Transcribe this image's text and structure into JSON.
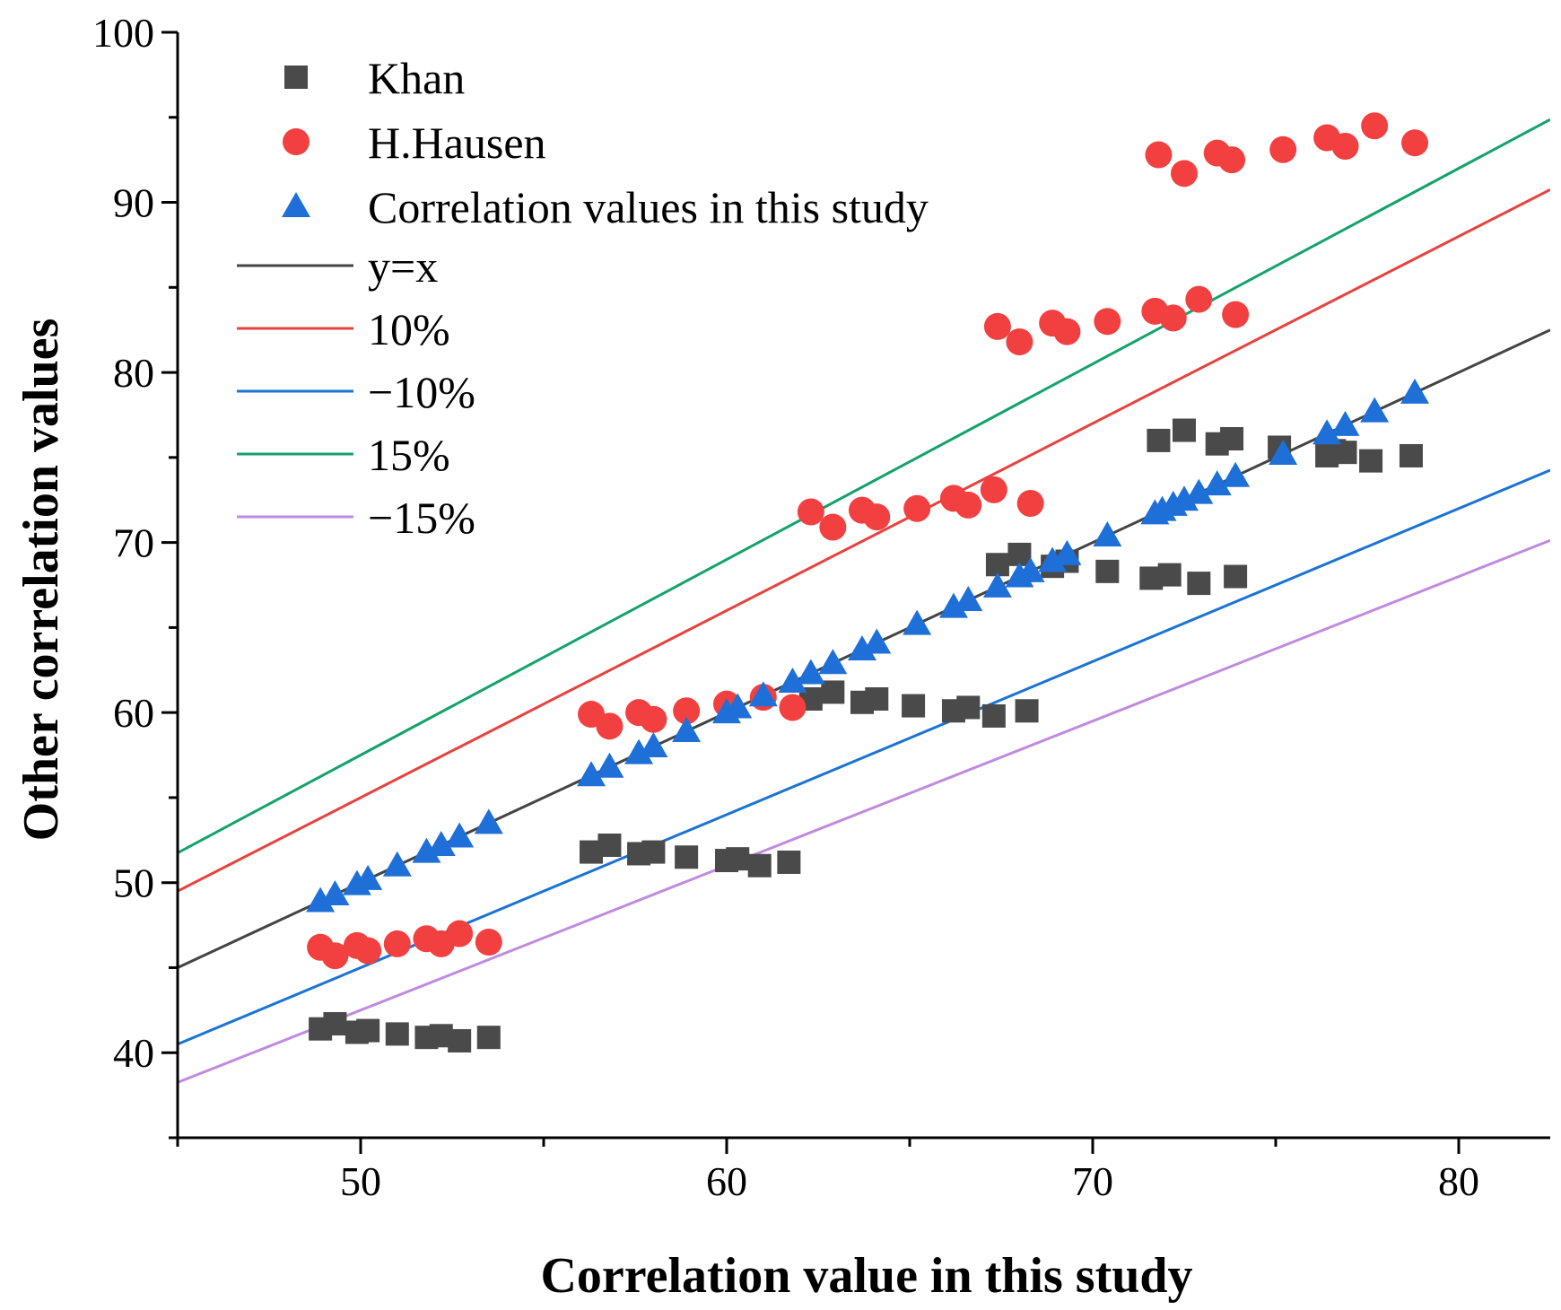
{
  "chart_data": {
    "type": "scatter",
    "title": "",
    "xlabel": "Correlation value in this study",
    "ylabel": "Other correlation values",
    "xlim": [
      45,
      82.5
    ],
    "ylim": [
      35,
      100
    ],
    "xticks": [
      50,
      60,
      70,
      80
    ],
    "yticks": [
      40,
      50,
      60,
      70,
      80,
      90,
      100
    ],
    "x_minor_step": 5,
    "y_minor_step": 5,
    "grid": false,
    "legend_position": "top-left",
    "series": [
      {
        "name": "Khan",
        "marker": "square",
        "color": "#4a4a4a",
        "x": [
          48.9,
          49.3,
          49.9,
          50.2,
          51.0,
          51.8,
          52.2,
          52.7,
          53.5,
          56.3,
          56.8,
          57.6,
          58.0,
          58.9,
          60.0,
          60.3,
          60.9,
          61.7,
          62.3,
          62.9,
          63.7,
          64.1,
          65.1,
          66.2,
          66.6,
          67.3,
          67.4,
          68.0,
          68.2,
          68.9,
          69.3,
          70.4,
          71.6,
          71.8,
          72.1,
          72.5,
          72.9,
          73.4,
          73.8,
          73.9,
          75.1,
          76.4,
          76.6,
          76.9,
          77.6,
          78.7
        ],
        "y": [
          41.4,
          41.7,
          41.2,
          41.3,
          41.1,
          40.9,
          41.0,
          40.7,
          40.9,
          51.8,
          52.2,
          51.7,
          51.8,
          51.5,
          51.3,
          51.4,
          51.0,
          51.2,
          60.8,
          61.2,
          60.6,
          60.8,
          60.4,
          60.1,
          60.3,
          59.8,
          68.7,
          69.3,
          60.1,
          68.6,
          68.9,
          68.3,
          67.9,
          76.0,
          68.1,
          76.6,
          67.6,
          75.8,
          76.1,
          68.0,
          75.6,
          75.1,
          75.4,
          75.3,
          74.8,
          75.1
        ]
      },
      {
        "name": "H.Hausen",
        "marker": "circle",
        "color": "#f24040",
        "x": [
          48.9,
          49.3,
          49.9,
          50.2,
          51.0,
          51.8,
          52.2,
          52.7,
          53.5,
          56.3,
          56.8,
          57.6,
          58.0,
          58.9,
          60.0,
          61.0,
          61.8,
          62.3,
          62.9,
          63.7,
          64.1,
          65.2,
          66.2,
          66.6,
          67.3,
          67.4,
          68.0,
          68.3,
          68.9,
          69.3,
          70.4,
          71.7,
          71.8,
          72.2,
          72.5,
          72.9,
          73.4,
          73.8,
          73.9,
          75.2,
          76.4,
          76.9,
          77.7,
          78.8
        ],
        "y": [
          46.2,
          45.7,
          46.3,
          46.0,
          46.4,
          46.7,
          46.4,
          47.0,
          46.5,
          59.9,
          59.2,
          60.0,
          59.6,
          60.1,
          60.5,
          60.9,
          60.3,
          71.8,
          70.9,
          71.9,
          71.5,
          72.0,
          72.6,
          72.2,
          73.1,
          82.7,
          81.8,
          72.3,
          82.9,
          82.4,
          83.0,
          83.6,
          92.8,
          83.2,
          91.7,
          84.3,
          92.9,
          92.5,
          83.4,
          93.1,
          93.8,
          93.3,
          94.5,
          93.5
        ]
      },
      {
        "name": "Correlation values in this study",
        "marker": "triangle",
        "color": "#1f6fd8",
        "x": [
          48.9,
          49.3,
          49.9,
          50.2,
          51.0,
          51.8,
          52.2,
          52.7,
          53.5,
          56.3,
          56.8,
          57.6,
          58.0,
          58.9,
          60.0,
          60.3,
          61.0,
          61.8,
          62.3,
          62.9,
          63.7,
          64.1,
          65.2,
          66.2,
          66.6,
          67.4,
          68.0,
          68.3,
          68.9,
          69.3,
          70.4,
          71.7,
          71.9,
          72.2,
          72.5,
          72.9,
          73.4,
          73.9,
          75.2,
          76.4,
          76.9,
          77.7,
          78.8
        ],
        "y": [
          48.9,
          49.3,
          49.9,
          50.2,
          51.0,
          51.8,
          52.2,
          52.7,
          53.5,
          56.3,
          56.8,
          57.6,
          58.0,
          58.9,
          60.0,
          60.3,
          61.0,
          61.8,
          62.3,
          62.9,
          63.7,
          64.1,
          65.2,
          66.2,
          66.6,
          67.4,
          68.0,
          68.3,
          68.9,
          69.3,
          70.4,
          71.7,
          71.9,
          72.2,
          72.5,
          72.9,
          73.4,
          73.9,
          75.2,
          76.4,
          76.9,
          77.7,
          78.8
        ]
      }
    ],
    "reference_lines": [
      {
        "name": "y=x",
        "factor": 1.0,
        "color": "#444444"
      },
      {
        "name": "10%",
        "factor": 1.1,
        "color": "#e8423f"
      },
      {
        "name": "−10%",
        "factor": 0.9,
        "color": "#1b73d3"
      },
      {
        "name": "15%",
        "factor": 1.15,
        "color": "#13a36a"
      },
      {
        "name": "−15%",
        "factor": 0.85,
        "color": "#c08ae0"
      }
    ]
  }
}
